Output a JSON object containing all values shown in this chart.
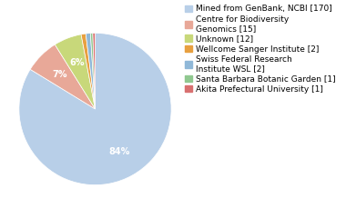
{
  "labels": [
    "Mined from GenBank, NCBI [170]",
    "Centre for Biodiversity\nGenomics [15]",
    "Unknown [12]",
    "Wellcome Sanger Institute [2]",
    "Swiss Federal Research\nInstitute WSL [2]",
    "Santa Barbara Botanic Garden [1]",
    "Akita Prefectural University [1]"
  ],
  "values": [
    170,
    15,
    12,
    2,
    2,
    1,
    1
  ],
  "colors": [
    "#b8cfe8",
    "#e8a898",
    "#c8d87a",
    "#e8a040",
    "#90b8d8",
    "#90c890",
    "#d87070"
  ],
  "background_color": "#ffffff",
  "text_color": "#ffffff",
  "legend_fontsize": 6.5,
  "autopct_fontsize": 7.0,
  "pie_pct_threshold": 1.0
}
